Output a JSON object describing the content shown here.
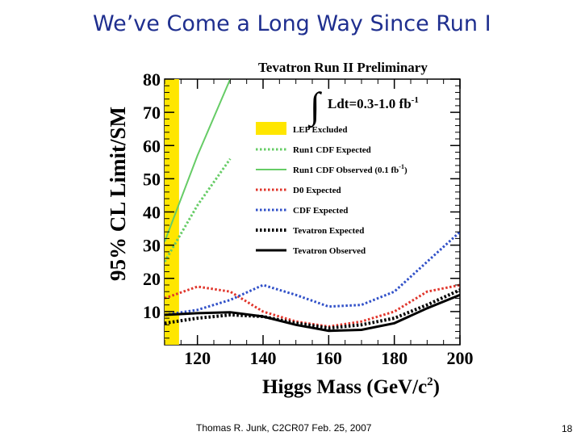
{
  "slide": {
    "title": "We’ve Come a Long Way Since Run I",
    "footer": "Thomas R. Junk, C2CR07 Feb. 25, 2007",
    "page_number": "18"
  },
  "chart_data": {
    "type": "line",
    "title": "Tevatron Run II Preliminary",
    "annotation_integral": "∫",
    "annotation_text": "Ldt=0.3-1.0 fb",
    "annotation_superscript": "-1",
    "xlabel": "Higgs Mass (GeV/c",
    "xlabel_superscript": "2",
    "xlabel_suffix": ")",
    "ylabel": "95% CL Limit/SM",
    "xlim": [
      110,
      200
    ],
    "ylim": [
      0,
      80
    ],
    "xticks": [
      120,
      140,
      160,
      180,
      200
    ],
    "yticks": [
      10,
      20,
      30,
      40,
      50,
      60,
      70,
      80
    ],
    "excluded_band": {
      "label": "LEP Excluded",
      "x_from": 110,
      "x_to": 114.4,
      "color": "#ffe600"
    },
    "series": [
      {
        "name": "Run1 CDF Expected",
        "color": "#66cc66",
        "style": "dotted",
        "width": 3,
        "points": [
          [
            110,
            25
          ],
          [
            120,
            42
          ],
          [
            130,
            56
          ]
        ]
      },
      {
        "name": "Run1 CDF Observed (0.1 fb",
        "name_superscript": "-1",
        "name_suffix": ")",
        "color": "#66cc66",
        "style": "solid",
        "width": 2,
        "points": [
          [
            110,
            31
          ],
          [
            120,
            57
          ],
          [
            130,
            80
          ]
        ]
      },
      {
        "name": "D0 Expected",
        "color": "#e0352b",
        "style": "dotted",
        "width": 3,
        "points": [
          [
            110,
            14
          ],
          [
            120,
            17.5
          ],
          [
            130,
            16
          ],
          [
            140,
            10
          ],
          [
            150,
            7
          ],
          [
            160,
            5.5
          ],
          [
            170,
            7
          ],
          [
            180,
            10
          ],
          [
            190,
            16
          ],
          [
            200,
            18
          ]
        ]
      },
      {
        "name": "CDF Expected",
        "color": "#3050c8",
        "style": "dotted",
        "width": 3,
        "points": [
          [
            110,
            9
          ],
          [
            120,
            10.5
          ],
          [
            130,
            13.5
          ],
          [
            140,
            18
          ],
          [
            150,
            15
          ],
          [
            160,
            11.5
          ],
          [
            170,
            12
          ],
          [
            180,
            16
          ],
          [
            190,
            25
          ],
          [
            200,
            34
          ]
        ]
      },
      {
        "name": "Tevatron Expected",
        "color": "#000000",
        "style": "dotted",
        "width": 4,
        "points": [
          [
            110,
            6.5
          ],
          [
            120,
            8
          ],
          [
            130,
            9
          ],
          [
            140,
            8.5
          ],
          [
            150,
            6.5
          ],
          [
            160,
            5
          ],
          [
            170,
            6
          ],
          [
            180,
            8
          ],
          [
            190,
            12
          ],
          [
            200,
            16.5
          ]
        ]
      },
      {
        "name": "Tevatron Observed",
        "color": "#000000",
        "style": "solid",
        "width": 3,
        "points": [
          [
            110,
            9
          ],
          [
            120,
            9.5
          ],
          [
            130,
            9.8
          ],
          [
            140,
            8.5
          ],
          [
            150,
            6
          ],
          [
            160,
            4.2
          ],
          [
            170,
            4.5
          ],
          [
            180,
            6.5
          ],
          [
            190,
            11
          ],
          [
            200,
            15
          ]
        ]
      }
    ]
  }
}
